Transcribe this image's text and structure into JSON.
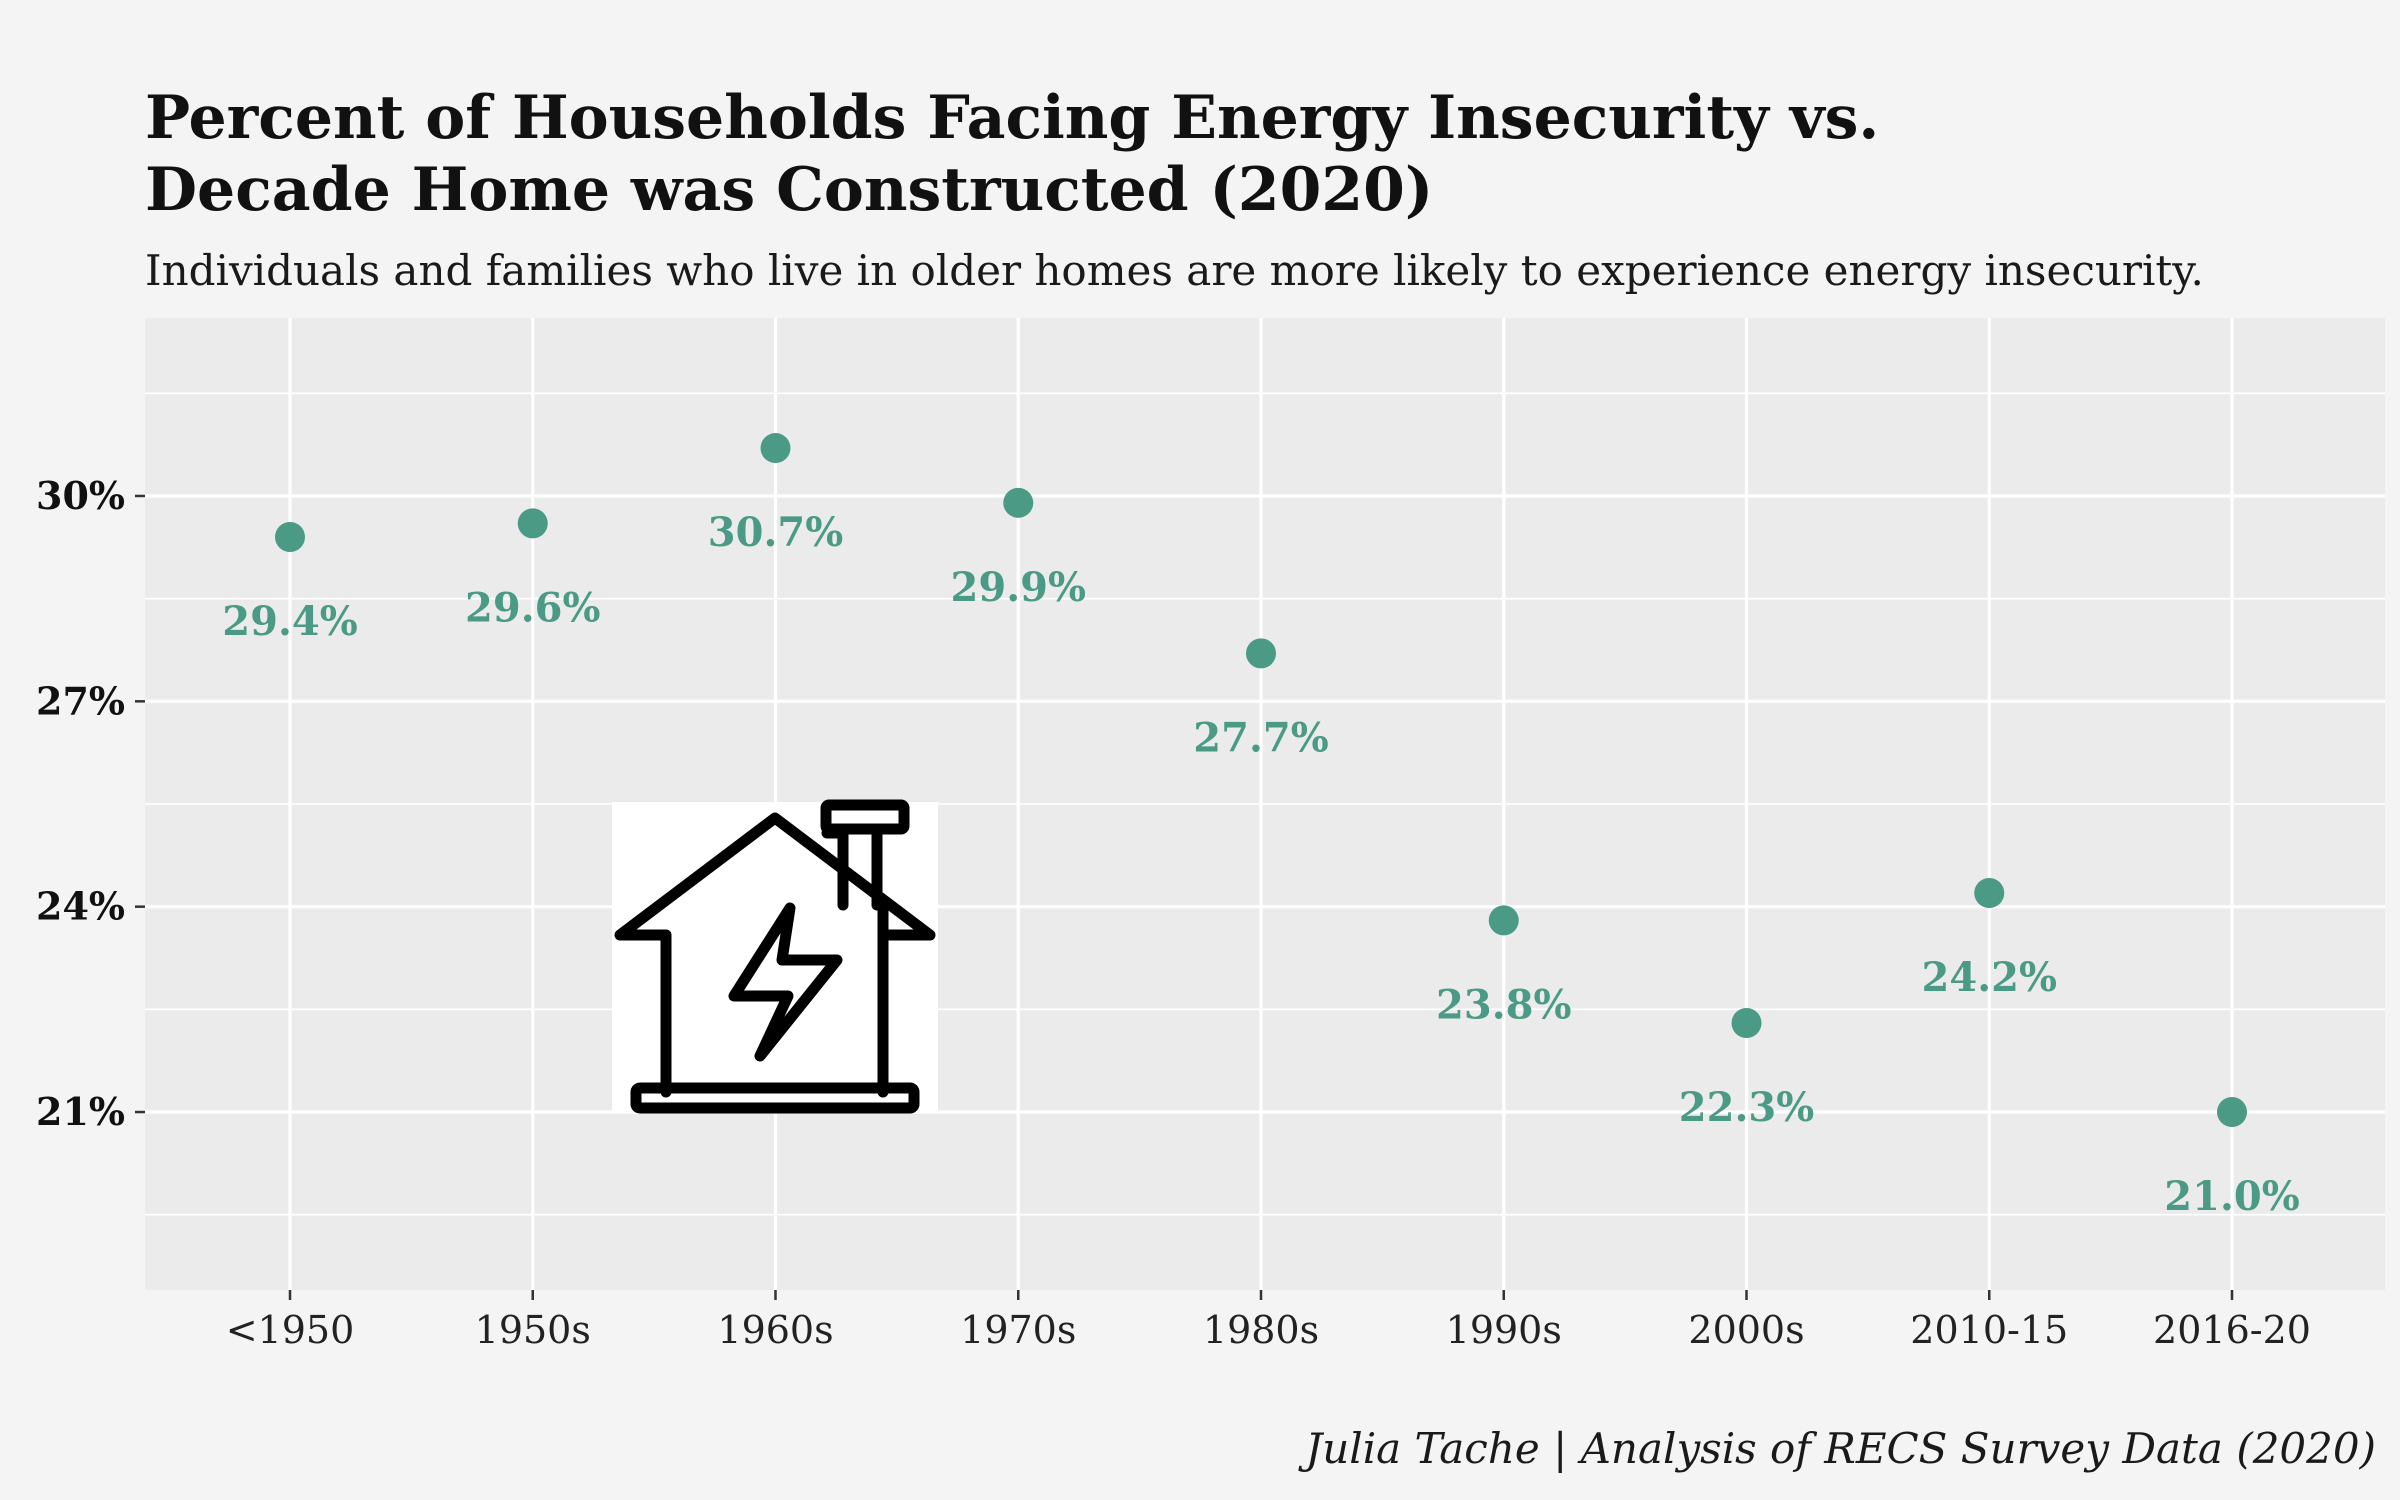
{
  "chart_data": {
    "type": "scatter",
    "title_lines": [
      "Percent of Households Facing Energy Insecurity vs.",
      "Decade Home was Constructed (2020)"
    ],
    "subtitle": "Individuals and families who live in older homes are more likely to experience energy insecurity.",
    "caption": "Julia Tache | Analysis of RECS Survey Data (2020)",
    "categories": [
      "<1950",
      "1950s",
      "1960s",
      "1970s",
      "1980s",
      "1990s",
      "2000s",
      "2010-15",
      "2016-20"
    ],
    "values": [
      29.4,
      29.6,
      30.7,
      29.9,
      27.7,
      23.8,
      22.3,
      24.2,
      21.0
    ],
    "data_labels": [
      "29.4%",
      "29.6%",
      "30.7%",
      "29.9%",
      "27.7%",
      "23.8%",
      "22.3%",
      "24.2%",
      "21.0%"
    ],
    "y_ticks": [
      21,
      24,
      27,
      30
    ],
    "y_tick_labels": [
      "21%",
      "24%",
      "27%",
      "30%"
    ],
    "ylim": [
      18.4,
      32.6
    ],
    "grid": true,
    "point_color": "#4a9a85",
    "panel_color": "#ebebeb",
    "background_color": "#f4f4f4",
    "image_icon": "house-energy-icon"
  }
}
